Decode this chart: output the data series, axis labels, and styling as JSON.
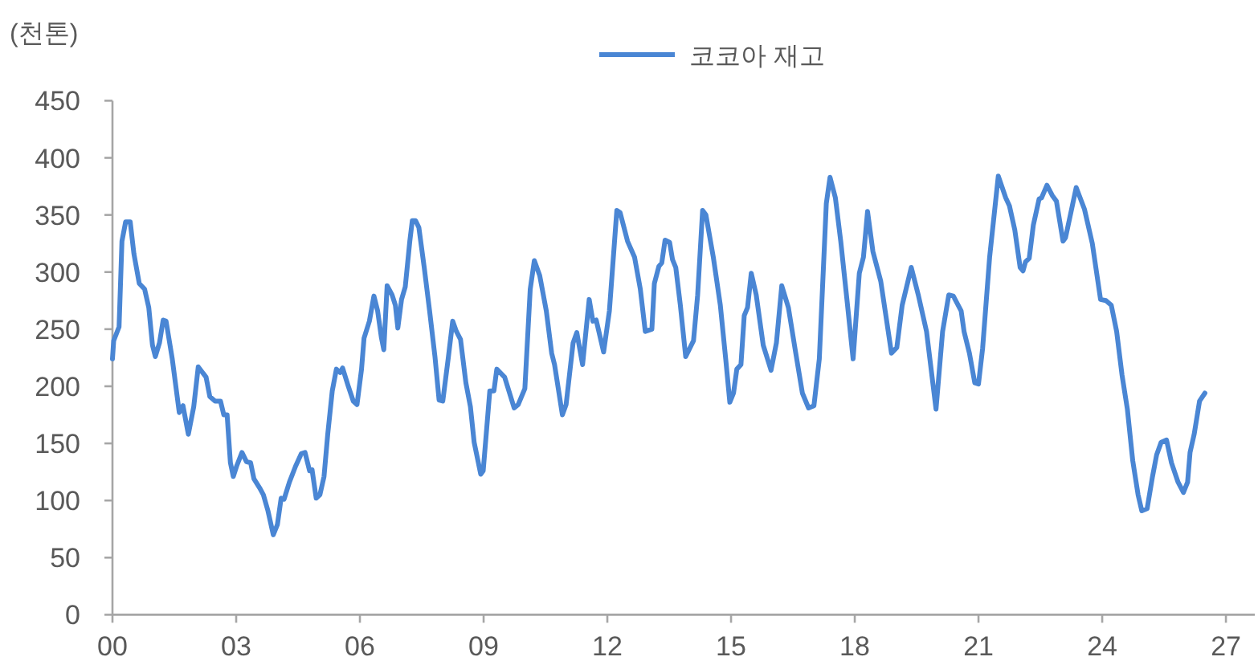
{
  "chart_data": {
    "type": "line",
    "ylabel": "(천톤)",
    "legend": "top",
    "xlim": [
      0,
      27.7
    ],
    "ylim": [
      0,
      450
    ],
    "xticks": [
      {
        "value": 0,
        "label": "00"
      },
      {
        "value": 3,
        "label": "03"
      },
      {
        "value": 6,
        "label": "06"
      },
      {
        "value": 9,
        "label": "09"
      },
      {
        "value": 12,
        "label": "12"
      },
      {
        "value": 15,
        "label": "15"
      },
      {
        "value": 18,
        "label": "18"
      },
      {
        "value": 21,
        "label": "21"
      },
      {
        "value": 24,
        "label": "24"
      },
      {
        "value": 27,
        "label": "27"
      }
    ],
    "yticks": [
      0,
      50,
      100,
      150,
      200,
      250,
      300,
      350,
      400,
      450
    ],
    "grid": false,
    "marker": "none",
    "line_style": "solid",
    "series": [
      {
        "name": "코코아 재고",
        "color": "#4a86d4",
        "x": [
          0,
          0.03,
          0.16,
          0.23,
          0.32,
          0.43,
          0.52,
          0.65,
          0.78,
          0.88,
          0.97,
          1.04,
          1.14,
          1.23,
          1.3,
          1.45,
          1.62,
          1.71,
          1.84,
          1.97,
          2.08,
          2.27,
          2.36,
          2.49,
          2.62,
          2.7,
          2.78,
          2.86,
          2.93,
          3.01,
          3.14,
          3.25,
          3.35,
          3.43,
          3.57,
          3.66,
          3.77,
          3.9,
          4.0,
          4.09,
          4.16,
          4.29,
          4.44,
          4.58,
          4.67,
          4.78,
          4.84,
          4.94,
          5.03,
          5.13,
          5.22,
          5.33,
          5.43,
          5.52,
          5.58,
          5.71,
          5.84,
          5.93,
          6.04,
          6.1,
          6.23,
          6.34,
          6.43,
          6.52,
          6.58,
          6.66,
          6.78,
          6.86,
          6.92,
          7.01,
          7.1,
          7.21,
          7.27,
          7.35,
          7.43,
          7.56,
          7.69,
          7.82,
          7.92,
          8.01,
          8.14,
          8.25,
          8.34,
          8.44,
          8.57,
          8.68,
          8.77,
          8.93,
          8.99,
          9.15,
          9.25,
          9.32,
          9.51,
          9.74,
          9.84,
          10.0,
          10.13,
          10.23,
          10.36,
          10.52,
          10.65,
          10.72,
          10.91,
          11.0,
          11.17,
          11.26,
          11.4,
          11.56,
          11.65,
          11.73,
          11.91,
          12.05,
          12.23,
          12.31,
          12.49,
          12.66,
          12.8,
          12.92,
          13.08,
          13.14,
          13.25,
          13.32,
          13.4,
          13.51,
          13.58,
          13.66,
          13.77,
          13.9,
          14.09,
          14.19,
          14.31,
          14.39,
          14.57,
          14.74,
          14.87,
          14.97,
          15.06,
          15.14,
          15.24,
          15.32,
          15.4,
          15.49,
          15.61,
          15.78,
          15.97,
          16.1,
          16.23,
          16.39,
          16.56,
          16.73,
          16.88,
          17.01,
          17.14,
          17.31,
          17.4,
          17.53,
          17.66,
          17.81,
          17.96,
          18.11,
          18.21,
          18.31,
          18.44,
          18.63,
          18.89,
          19.02,
          19.15,
          19.37,
          19.54,
          19.74,
          19.97,
          20.13,
          20.28,
          20.39,
          20.58,
          20.65,
          20.78,
          20.91,
          21.0,
          21.1,
          21.27,
          21.48,
          21.66,
          21.75,
          21.88,
          22.01,
          22.08,
          22.14,
          22.23,
          22.33,
          22.47,
          22.53,
          22.66,
          22.79,
          22.89,
          23.05,
          23.11,
          23.37,
          23.57,
          23.76,
          23.96,
          24.09,
          24.22,
          24.35,
          24.48,
          24.61,
          24.74,
          24.87,
          24.96,
          25.09,
          25.22,
          25.32,
          25.43,
          25.56,
          25.68,
          25.84,
          25.97,
          26.07,
          26.13,
          26.23,
          26.36,
          26.49
        ],
        "values": [
          224,
          240,
          252,
          327,
          344,
          344,
          316,
          290,
          285,
          269,
          236,
          226,
          238,
          258,
          257,
          224,
          177,
          183,
          158,
          182,
          217,
          208,
          191,
          187,
          187,
          175,
          175,
          133,
          121,
          130,
          142,
          134,
          133,
          119,
          111,
          105,
          91,
          70,
          79,
          102,
          101,
          116,
          130,
          141,
          142,
          126,
          127,
          102,
          105,
          121,
          158,
          196,
          215,
          212,
          216,
          201,
          187,
          184,
          215,
          242,
          257,
          279,
          266,
          243,
          232,
          288,
          280,
          271,
          251,
          276,
          287,
          327,
          345,
          345,
          339,
          304,
          266,
          226,
          188,
          187,
          224,
          257,
          248,
          241,
          203,
          182,
          151,
          123,
          126,
          196,
          196,
          215,
          208,
          181,
          184,
          198,
          285,
          310,
          297,
          266,
          229,
          219,
          175,
          184,
          238,
          247,
          219,
          276,
          257,
          258,
          230,
          266,
          354,
          352,
          327,
          313,
          285,
          248,
          250,
          290,
          305,
          308,
          328,
          326,
          311,
          304,
          271,
          226,
          240,
          280,
          354,
          350,
          313,
          271,
          224,
          186,
          194,
          215,
          219,
          262,
          269,
          299,
          280,
          236,
          214,
          238,
          288,
          269,
          231,
          194,
          181,
          183,
          224,
          360,
          383,
          365,
          327,
          276,
          224,
          299,
          313,
          353,
          318,
          292,
          229,
          234,
          271,
          304,
          280,
          248,
          180,
          248,
          280,
          279,
          266,
          248,
          229,
          203,
          202,
          233,
          313,
          384,
          365,
          358,
          337,
          304,
          301,
          309,
          312,
          341,
          364,
          365,
          376,
          367,
          362,
          327,
          330,
          374,
          355,
          325,
          276,
          275,
          271,
          248,
          210,
          180,
          135,
          105,
          91,
          93,
          121,
          140,
          151,
          153,
          133,
          116,
          107,
          116,
          142,
          158,
          187,
          194
        ]
      }
    ]
  }
}
